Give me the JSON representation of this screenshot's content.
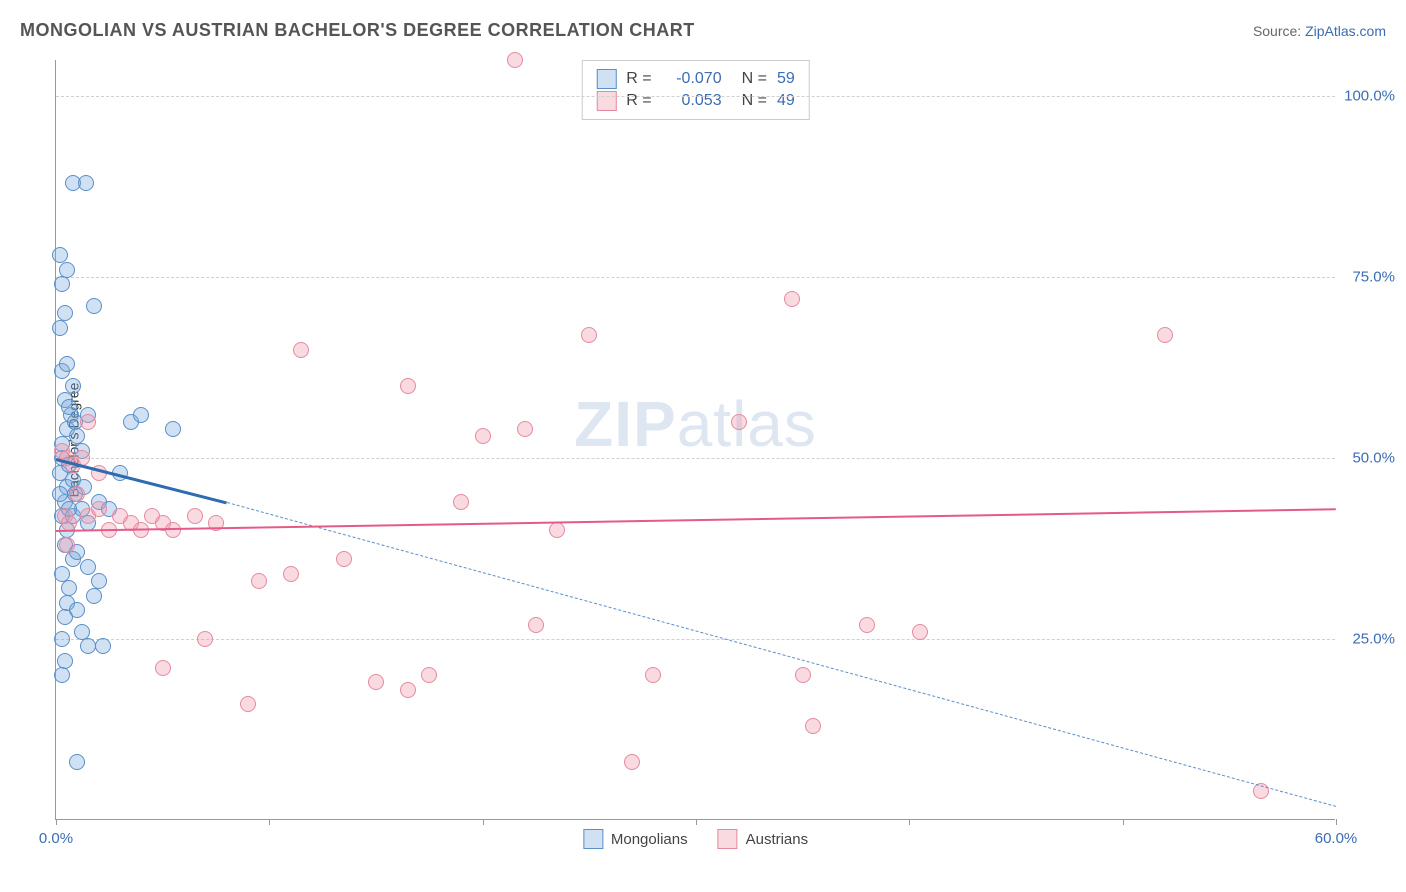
{
  "title": "MONGOLIAN VS AUSTRIAN BACHELOR'S DEGREE CORRELATION CHART",
  "source_label": "Source: ",
  "source_link": "ZipAtlas.com",
  "yaxis_label": "Bachelor's Degree",
  "watermark_zip": "ZIP",
  "watermark_atlas": "atlas",
  "chart": {
    "type": "scatter",
    "xlim": [
      0,
      60
    ],
    "ylim": [
      0,
      105
    ],
    "xtick_positions": [
      0,
      10,
      20,
      30,
      40,
      50,
      60
    ],
    "xtick_labels": {
      "0": "0.0%",
      "60": "60.0%"
    },
    "ytick_positions": [
      25,
      50,
      75,
      100
    ],
    "ytick_labels": [
      "25.0%",
      "50.0%",
      "75.0%",
      "100.0%"
    ],
    "grid_color": "#d0d0d0",
    "background_color": "#ffffff",
    "marker_radius": 8,
    "marker_border_width": 1.2,
    "series": [
      {
        "name": "Mongolians",
        "color_fill": "rgba(120,170,220,0.35)",
        "color_stroke": "#5a8fc8",
        "R": "-0.070",
        "N": "59",
        "trend_solid": {
          "x1": 0,
          "y1": 50,
          "x2": 8,
          "y2": 44,
          "width": 3,
          "color": "#2f6bb0"
        },
        "trend_dash": {
          "x1": 8,
          "y1": 44,
          "x2": 60,
          "y2": 2,
          "width": 1.2,
          "color": "#5a8fc8"
        },
        "points": [
          [
            0.2,
            48
          ],
          [
            0.3,
            50
          ],
          [
            0.5,
            46
          ],
          [
            0.4,
            44
          ],
          [
            0.6,
            49
          ],
          [
            0.8,
            47
          ],
          [
            0.3,
            52
          ],
          [
            0.5,
            54
          ],
          [
            0.7,
            56
          ],
          [
            0.9,
            55
          ],
          [
            1.0,
            53
          ],
          [
            1.2,
            51
          ],
          [
            0.4,
            58
          ],
          [
            0.6,
            57
          ],
          [
            0.8,
            60
          ],
          [
            1.5,
            56
          ],
          [
            0.3,
            62
          ],
          [
            0.5,
            63
          ],
          [
            0.2,
            68
          ],
          [
            0.4,
            70
          ],
          [
            0.3,
            74
          ],
          [
            1.8,
            71
          ],
          [
            0.5,
            76
          ],
          [
            0.2,
            78
          ],
          [
            0.8,
            88
          ],
          [
            1.4,
            88
          ],
          [
            0.3,
            42
          ],
          [
            0.5,
            40
          ],
          [
            0.8,
            42
          ],
          [
            1.2,
            43
          ],
          [
            1.5,
            41
          ],
          [
            2.0,
            44
          ],
          [
            2.5,
            43
          ],
          [
            3.0,
            48
          ],
          [
            3.5,
            55
          ],
          [
            4.0,
            56
          ],
          [
            5.5,
            54
          ],
          [
            0.4,
            38
          ],
          [
            0.8,
            36
          ],
          [
            1.0,
            37
          ],
          [
            1.5,
            35
          ],
          [
            0.3,
            34
          ],
          [
            0.6,
            32
          ],
          [
            0.5,
            30
          ],
          [
            1.0,
            29
          ],
          [
            1.8,
            31
          ],
          [
            2.0,
            33
          ],
          [
            0.4,
            28
          ],
          [
            0.3,
            25
          ],
          [
            1.5,
            24
          ],
          [
            1.2,
            26
          ],
          [
            2.2,
            24
          ],
          [
            0.4,
            22
          ],
          [
            0.3,
            20
          ],
          [
            0.2,
            45
          ],
          [
            0.6,
            43
          ],
          [
            0.9,
            45
          ],
          [
            1.3,
            46
          ],
          [
            1.0,
            8
          ]
        ]
      },
      {
        "name": "Austrians",
        "color_fill": "rgba(240,150,170,0.35)",
        "color_stroke": "#e58aa0",
        "R": "0.053",
        "N": "49",
        "trend_solid": {
          "x1": 0,
          "y1": 40,
          "x2": 60,
          "y2": 43,
          "width": 2.5,
          "color": "#e65a88"
        },
        "trend_dash": null,
        "points": [
          [
            0.3,
            51
          ],
          [
            0.5,
            50
          ],
          [
            0.8,
            49
          ],
          [
            1.2,
            50
          ],
          [
            0.4,
            42
          ],
          [
            0.6,
            41
          ],
          [
            1.5,
            42
          ],
          [
            2.0,
            43
          ],
          [
            2.5,
            40
          ],
          [
            3.0,
            42
          ],
          [
            3.5,
            41
          ],
          [
            4.0,
            40
          ],
          [
            4.5,
            42
          ],
          [
            5.0,
            41
          ],
          [
            5.5,
            40
          ],
          [
            6.5,
            42
          ],
          [
            7.5,
            41
          ],
          [
            2.0,
            48
          ],
          [
            1.0,
            45
          ],
          [
            0.5,
            38
          ],
          [
            1.5,
            55
          ],
          [
            11.5,
            65
          ],
          [
            16.5,
            60
          ],
          [
            20.0,
            53
          ],
          [
            22.0,
            54
          ],
          [
            19.0,
            44
          ],
          [
            21.5,
            105
          ],
          [
            25.0,
            67
          ],
          [
            23.5,
            40
          ],
          [
            34.5,
            72
          ],
          [
            32.0,
            55
          ],
          [
            35.0,
            20
          ],
          [
            38.0,
            27
          ],
          [
            35.5,
            13
          ],
          [
            40.5,
            26
          ],
          [
            52.0,
            67
          ],
          [
            56.5,
            4
          ],
          [
            9.5,
            33
          ],
          [
            11.0,
            34
          ],
          [
            13.5,
            36
          ],
          [
            15.0,
            19
          ],
          [
            16.5,
            18
          ],
          [
            9.0,
            16
          ],
          [
            22.5,
            27
          ],
          [
            17.5,
            20
          ],
          [
            27.0,
            8
          ],
          [
            28.0,
            20
          ],
          [
            5.0,
            21
          ],
          [
            7.0,
            25
          ]
        ]
      }
    ]
  },
  "legend_top": {
    "R_label": "R =",
    "N_label": "N =",
    "value_color": "#3b6db3"
  },
  "legend_bottom_labels": [
    "Mongolians",
    "Austrians"
  ]
}
